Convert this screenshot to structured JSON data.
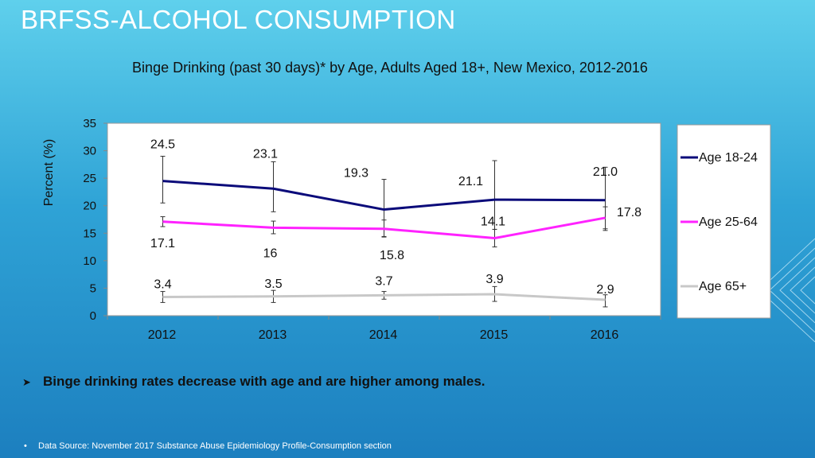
{
  "slide": {
    "title": "BRFSS-ALCOHOL CONSUMPTION",
    "bullet": "Binge drinking rates decrease with age and are higher among males.",
    "source": "Data Source: November 2017 Substance Abuse Epidemiology Profile-Consumption section"
  },
  "chart_data": {
    "type": "line",
    "title": "Binge Drinking (past 30 days)* by Age, Adults Aged 18+, New Mexico, 2012-2016",
    "ylabel": "Percent (%)",
    "xlabel": "",
    "categories": [
      "2012",
      "2013",
      "2014",
      "2015",
      "2016"
    ],
    "ylim": [
      0,
      35
    ],
    "yticks": [
      0,
      5,
      10,
      15,
      20,
      25,
      30,
      35
    ],
    "legend_position": "right",
    "series": [
      {
        "name": "Age 18-24",
        "color": "#0b0b7a",
        "values": [
          24.5,
          23.1,
          19.3,
          21.1,
          21.0
        ],
        "labels": [
          "24.5",
          "23.1",
          "19.3",
          "21.1",
          "21.0"
        ],
        "err_low": [
          20.5,
          18.9,
          14.4,
          15.7,
          15.5
        ],
        "err_high": [
          29.0,
          28.0,
          24.8,
          28.2,
          27.0
        ]
      },
      {
        "name": "Age 25-64",
        "color": "#ff22ff",
        "values": [
          17.1,
          16,
          15.8,
          14.1,
          17.8
        ],
        "labels": [
          "17.1",
          "16",
          "15.8",
          "14.1",
          "17.8"
        ],
        "err_low": [
          16.2,
          14.9,
          14.3,
          12.5,
          15.8
        ],
        "err_high": [
          18.0,
          17.2,
          17.4,
          15.7,
          19.8
        ]
      },
      {
        "name": "Age 65+",
        "color": "#c8c8c8",
        "values": [
          3.4,
          3.5,
          3.7,
          3.9,
          2.9
        ],
        "labels": [
          "3.4",
          "3.5",
          "3.7",
          "3.9",
          "2.9"
        ],
        "err_low": [
          2.4,
          2.4,
          3.0,
          2.6,
          1.6
        ],
        "err_high": [
          4.4,
          4.6,
          4.4,
          5.3,
          3.8
        ]
      }
    ]
  }
}
